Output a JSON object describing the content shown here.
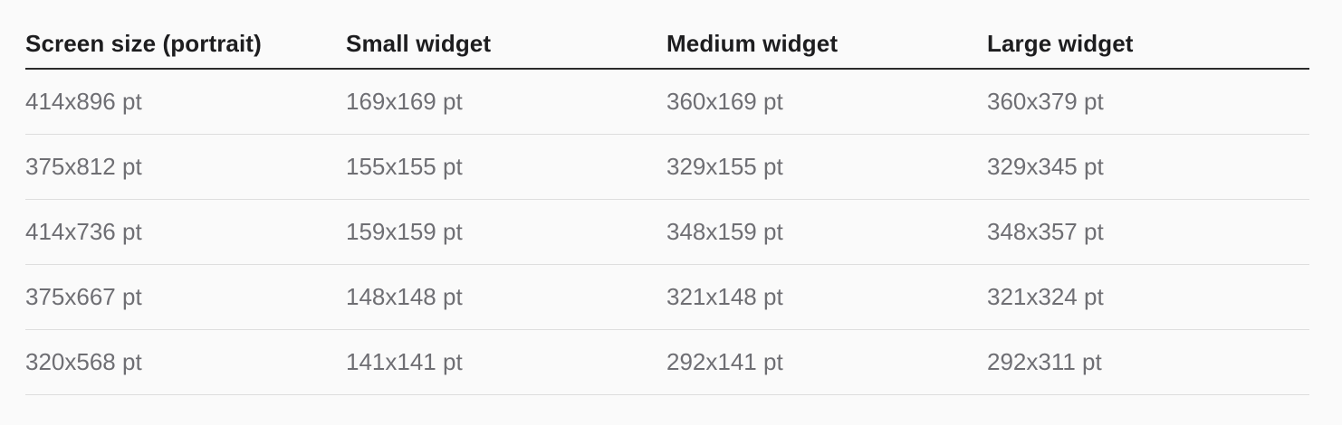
{
  "table": {
    "headers": [
      "Screen size (portrait)",
      "Small widget",
      "Medium widget",
      "Large widget"
    ],
    "rows": [
      [
        "414x896 pt",
        "169x169 pt",
        "360x169 pt",
        "360x379 pt"
      ],
      [
        "375x812 pt",
        "155x155 pt",
        "329x155 pt",
        "329x345 pt"
      ],
      [
        "414x736 pt",
        "159x159 pt",
        "348x159 pt",
        "348x357 pt"
      ],
      [
        "375x667 pt",
        "148x148 pt",
        "321x148 pt",
        "321x324 pt"
      ],
      [
        "320x568 pt",
        "141x141 pt",
        "292x141 pt",
        "292x311 pt"
      ]
    ]
  }
}
